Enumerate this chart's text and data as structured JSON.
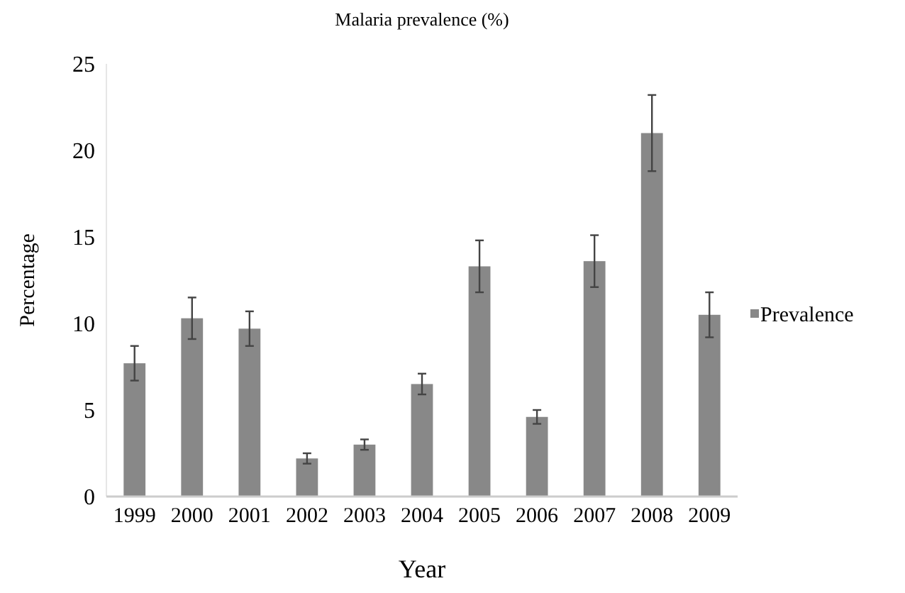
{
  "chart_data": {
    "type": "bar",
    "title": "Malaria prevalence (%)",
    "xlabel": "Year",
    "ylabel": "Percentage",
    "categories": [
      "1999",
      "2000",
      "2001",
      "2002",
      "2003",
      "2004",
      "2005",
      "2006",
      "2007",
      "2008",
      "2009"
    ],
    "series": [
      {
        "name": "Prevalence",
        "color": "#888888",
        "values": [
          7.7,
          10.3,
          9.7,
          2.2,
          3.0,
          6.5,
          13.3,
          4.6,
          13.6,
          21.0,
          10.5
        ],
        "errors": [
          1.0,
          1.2,
          1.0,
          0.3,
          0.3,
          0.6,
          1.5,
          0.4,
          1.5,
          2.2,
          1.3
        ]
      }
    ],
    "ylim": [
      0,
      25
    ],
    "yticks": [
      0,
      5,
      10,
      15,
      20,
      25
    ],
    "grid": false,
    "legend": "right"
  }
}
